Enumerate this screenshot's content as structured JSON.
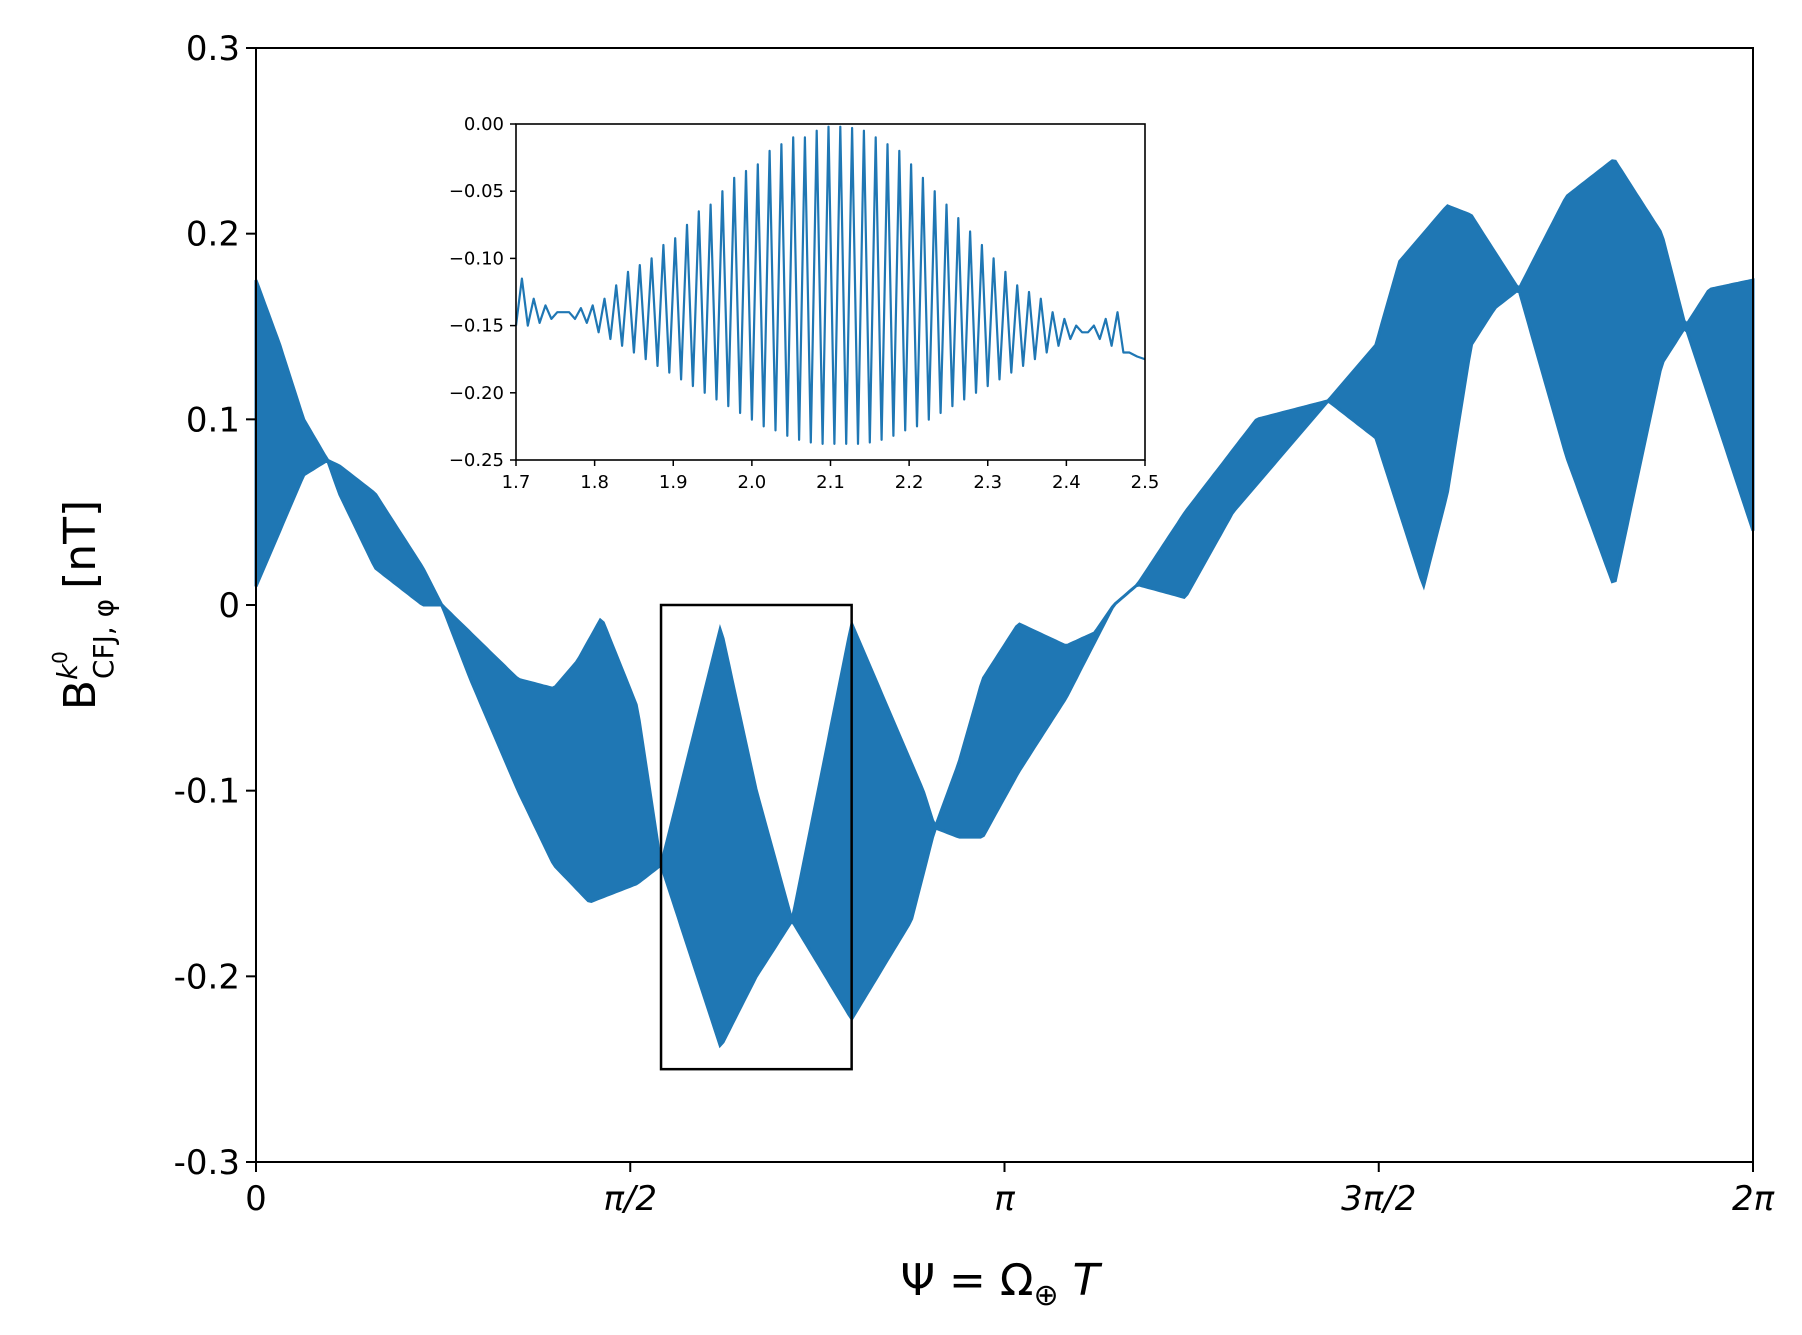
{
  "chart_data": [
    {
      "id": "main",
      "type": "line",
      "style": "filled-envelope",
      "title": "",
      "xlabel": "Ψ = Ω⊕ T",
      "ylabel": "B CFJ,φ k0 [nT]",
      "ylabel_parts": {
        "base": "B",
        "sup": "k",
        "supsup": "0",
        "sub": "CFJ, φ",
        "unit": "[nT]"
      },
      "xlim": [
        0,
        6.2832
      ],
      "ylim": [
        -0.3,
        0.3
      ],
      "x_ticks": [
        {
          "value": 0,
          "label": "0"
        },
        {
          "value": 1.5708,
          "label": "π/2"
        },
        {
          "value": 3.1416,
          "label": "π"
        },
        {
          "value": 4.7124,
          "label": "3π/2"
        },
        {
          "value": 6.2832,
          "label": "2π"
        }
      ],
      "y_ticks": [
        {
          "value": 0.3,
          "label": "0.3"
        },
        {
          "value": 0.2,
          "label": "0.2"
        },
        {
          "value": 0.1,
          "label": "0.1"
        },
        {
          "value": 0,
          "label": "0"
        },
        {
          "value": -0.1,
          "label": "-0.1"
        },
        {
          "value": -0.2,
          "label": "-0.2"
        },
        {
          "value": -0.3,
          "label": "-0.3"
        }
      ],
      "series": [
        {
          "color": "#1f77b4",
          "envelope_upper": {
            "x": [
              0,
              0.1,
              0.2,
              0.3,
              0.35,
              0.5,
              0.7,
              0.78,
              0.9,
              1.1,
              1.25,
              1.35,
              1.45,
              1.6,
              1.7,
              1.95,
              2.1,
              2.25,
              2.5,
              2.8,
              2.85,
              2.95,
              3.05,
              3.2,
              3.4,
              3.52,
              3.6,
              3.7,
              3.9,
              4.2,
              4.5,
              4.7,
              4.8,
              5.0,
              5.1,
              5.3,
              5.5,
              5.7,
              5.9,
              6.0,
              6.1,
              6.2832
            ],
            "y": [
              0.175,
              0.14,
              0.1,
              0.078,
              0.075,
              0.06,
              0.02,
              0.0,
              -0.015,
              -0.04,
              -0.045,
              -0.03,
              -0.007,
              -0.055,
              -0.14,
              -0.012,
              -0.1,
              -0.17,
              -0.01,
              -0.1,
              -0.12,
              -0.085,
              -0.04,
              -0.01,
              -0.022,
              -0.015,
              0.0,
              0.011,
              0.05,
              0.1,
              0.11,
              0.14,
              0.185,
              0.215,
              0.21,
              0.17,
              0.22,
              0.24,
              0.2,
              0.15,
              0.17,
              0.175
            ]
          },
          "envelope_lower": {
            "x": [
              0,
              0.1,
              0.2,
              0.3,
              0.35,
              0.5,
              0.7,
              0.78,
              0.9,
              1.1,
              1.25,
              1.4,
              1.5,
              1.6,
              1.7,
              1.95,
              2.1,
              2.25,
              2.5,
              2.75,
              2.85,
              2.95,
              3.05,
              3.2,
              3.4,
              3.52,
              3.6,
              3.7,
              3.9,
              4.1,
              4.3,
              4.5,
              4.7,
              4.8,
              4.9,
              5.0,
              5.1,
              5.2,
              5.3,
              5.5,
              5.7,
              5.9,
              6.0,
              6.2832
            ],
            "y": [
              0.01,
              0.04,
              0.07,
              0.078,
              0.06,
              0.02,
              0.0,
              0.0,
              -0.04,
              -0.1,
              -0.14,
              -0.16,
              -0.155,
              -0.15,
              -0.14,
              -0.238,
              -0.2,
              -0.17,
              -0.223,
              -0.17,
              -0.12,
              -0.125,
              -0.125,
              -0.09,
              -0.05,
              -0.02,
              0.0,
              0.011,
              0.004,
              0.05,
              0.08,
              0.11,
              0.09,
              0.05,
              0.01,
              0.06,
              0.14,
              0.16,
              0.17,
              0.08,
              0.01,
              0.13,
              0.15,
              0.04
            ]
          }
        }
      ],
      "annotations": [
        {
          "type": "rect",
          "label": "zoom-box",
          "x0": 1.7,
          "x1": 2.5,
          "y0": -0.25,
          "y1": 0.0
        }
      ]
    },
    {
      "id": "inset",
      "type": "line",
      "title": "",
      "xlabel": "",
      "ylabel": "",
      "xlim": [
        1.7,
        2.5
      ],
      "ylim": [
        -0.25,
        0.0
      ],
      "x_ticks": [
        {
          "value": 1.7,
          "label": "1.7"
        },
        {
          "value": 1.8,
          "label": "1.8"
        },
        {
          "value": 1.9,
          "label": "1.9"
        },
        {
          "value": 2.0,
          "label": "2.0"
        },
        {
          "value": 2.1,
          "label": "2.1"
        },
        {
          "value": 2.2,
          "label": "2.2"
        },
        {
          "value": 2.3,
          "label": "2.3"
        },
        {
          "value": 2.4,
          "label": "2.4"
        },
        {
          "value": 2.5,
          "label": "2.5"
        }
      ],
      "y_ticks": [
        {
          "value": 0.0,
          "label": "0.00"
        },
        {
          "value": -0.05,
          "label": "−0.05"
        },
        {
          "value": -0.1,
          "label": "−0.10"
        },
        {
          "value": -0.15,
          "label": "−0.15"
        },
        {
          "value": -0.2,
          "label": "−0.20"
        },
        {
          "value": -0.25,
          "label": "−0.25"
        }
      ],
      "series": [
        {
          "color": "#1f77b4",
          "x": [
            1.7,
            1.7075,
            1.715,
            1.7225,
            1.73,
            1.7375,
            1.745,
            1.7525,
            1.76,
            1.7675,
            1.775,
            1.7825,
            1.79,
            1.7975,
            1.805,
            1.8125,
            1.82,
            1.8275,
            1.835,
            1.8425,
            1.85,
            1.8575,
            1.865,
            1.8725,
            1.88,
            1.8875,
            1.895,
            1.9025,
            1.91,
            1.9175,
            1.925,
            1.9325,
            1.94,
            1.9475,
            1.955,
            1.9625,
            1.97,
            1.9775,
            1.985,
            1.9925,
            2.0,
            2.0075,
            2.015,
            2.0225,
            2.03,
            2.0375,
            2.045,
            2.0525,
            2.06,
            2.0675,
            2.075,
            2.0825,
            2.09,
            2.0975,
            2.105,
            2.1125,
            2.12,
            2.1275,
            2.135,
            2.1425,
            2.15,
            2.1575,
            2.165,
            2.1725,
            2.18,
            2.1875,
            2.195,
            2.2025,
            2.21,
            2.2175,
            2.225,
            2.2325,
            2.24,
            2.2475,
            2.255,
            2.2625,
            2.27,
            2.2775,
            2.285,
            2.2925,
            2.3,
            2.3075,
            2.315,
            2.3225,
            2.33,
            2.3375,
            2.345,
            2.3525,
            2.36,
            2.3675,
            2.375,
            2.3825,
            2.39,
            2.3975,
            2.405,
            2.4125,
            2.42,
            2.4275,
            2.435,
            2.4425,
            2.45,
            2.4575,
            2.465,
            2.4725,
            2.48,
            2.49,
            2.5
          ],
          "y": [
            -0.15,
            -0.115,
            -0.15,
            -0.13,
            -0.148,
            -0.135,
            -0.145,
            -0.14,
            -0.14,
            -0.14,
            -0.145,
            -0.137,
            -0.148,
            -0.135,
            -0.155,
            -0.13,
            -0.16,
            -0.12,
            -0.165,
            -0.11,
            -0.17,
            -0.105,
            -0.175,
            -0.1,
            -0.18,
            -0.09,
            -0.185,
            -0.085,
            -0.19,
            -0.075,
            -0.195,
            -0.065,
            -0.2,
            -0.06,
            -0.205,
            -0.05,
            -0.21,
            -0.04,
            -0.215,
            -0.035,
            -0.22,
            -0.03,
            -0.225,
            -0.02,
            -0.228,
            -0.015,
            -0.232,
            -0.01,
            -0.235,
            -0.01,
            -0.237,
            -0.005,
            -0.238,
            -0.002,
            -0.238,
            -0.002,
            -0.238,
            -0.003,
            -0.238,
            -0.005,
            -0.237,
            -0.01,
            -0.235,
            -0.015,
            -0.232,
            -0.02,
            -0.228,
            -0.03,
            -0.225,
            -0.04,
            -0.22,
            -0.05,
            -0.215,
            -0.06,
            -0.21,
            -0.07,
            -0.205,
            -0.08,
            -0.2,
            -0.09,
            -0.195,
            -0.1,
            -0.19,
            -0.11,
            -0.185,
            -0.12,
            -0.18,
            -0.125,
            -0.175,
            -0.13,
            -0.17,
            -0.14,
            -0.165,
            -0.145,
            -0.16,
            -0.15,
            -0.155,
            -0.155,
            -0.15,
            -0.16,
            -0.145,
            -0.165,
            -0.14,
            -0.17,
            -0.17,
            -0.173,
            -0.175
          ]
        }
      ]
    }
  ]
}
